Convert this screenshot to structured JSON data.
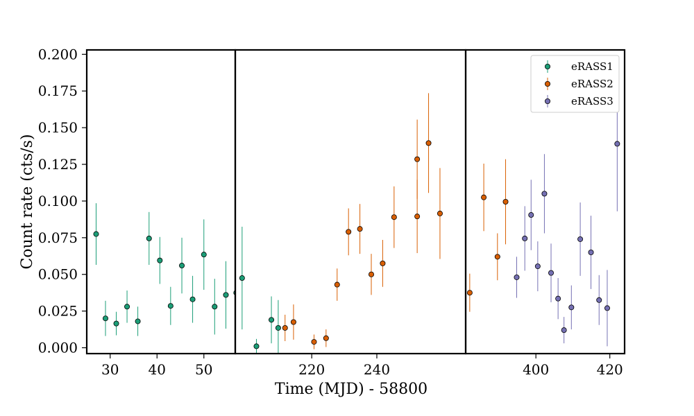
{
  "chart_data": {
    "type": "scatter",
    "xlabel": "Time (MJD) - 58800",
    "ylabel": "Count rate (cts/s)",
    "ylim": [
      -0.004,
      0.203
    ],
    "legend": {
      "placement": "top-right",
      "entries": [
        "eRASS1",
        "eRASS2",
        "eRASS3"
      ]
    },
    "colors": {
      "eRASS1": "#1b9e77",
      "eRASS2": "#d95f02",
      "eRASS3": "#7570b3"
    },
    "panels": [
      {
        "xlim": [
          25,
          56.7
        ],
        "xticks": [
          30,
          40,
          50
        ],
        "xtick_labels": [
          "30",
          "40",
          "50"
        ],
        "points": [
          {
            "series": "eRASS1",
            "x": 27.0,
            "y": 0.0775,
            "err": 0.021
          },
          {
            "series": "eRASS1",
            "x": 29.0,
            "y": 0.02,
            "err": 0.012
          },
          {
            "series": "eRASS1",
            "x": 31.3,
            "y": 0.0165,
            "err": 0.008
          },
          {
            "series": "eRASS1",
            "x": 33.6,
            "y": 0.028,
            "err": 0.011
          },
          {
            "series": "eRASS1",
            "x": 35.9,
            "y": 0.018,
            "err": 0.01
          },
          {
            "series": "eRASS1",
            "x": 38.3,
            "y": 0.0745,
            "err": 0.018
          },
          {
            "series": "eRASS1",
            "x": 40.6,
            "y": 0.0595,
            "err": 0.016
          },
          {
            "series": "eRASS1",
            "x": 42.9,
            "y": 0.0285,
            "err": 0.013
          },
          {
            "series": "eRASS1",
            "x": 45.3,
            "y": 0.056,
            "err": 0.019
          },
          {
            "series": "eRASS1",
            "x": 47.6,
            "y": 0.033,
            "err": 0.016
          },
          {
            "series": "eRASS1",
            "x": 50.0,
            "y": 0.0635,
            "err": 0.024
          },
          {
            "series": "eRASS1",
            "x": 52.3,
            "y": 0.028,
            "err": 0.019
          },
          {
            "series": "eRASS1",
            "x": 54.7,
            "y": 0.036,
            "err": 0.023
          },
          {
            "series": "eRASS1",
            "x": 56.9,
            "y": 0.0375,
            "err": 0.026
          }
        ]
      },
      {
        "xlim": [
          196.5,
          267.3
        ],
        "xticks": [
          220,
          240
        ],
        "xtick_labels": [
          "220",
          "240"
        ],
        "points": [
          {
            "series": "eRASS1",
            "x": 198.6,
            "y": 0.0475,
            "err": 0.035
          },
          {
            "series": "eRASS1",
            "x": 203.0,
            "y": 0.001,
            "err": 0.005
          },
          {
            "series": "eRASS1",
            "x": 207.6,
            "y": 0.019,
            "err": 0.016
          },
          {
            "series": "eRASS1",
            "x": 209.7,
            "y": 0.0135,
            "err": 0.019
          },
          {
            "series": "eRASS2",
            "x": 211.8,
            "y": 0.0135,
            "err": 0.009
          },
          {
            "series": "eRASS2",
            "x": 214.4,
            "y": 0.0175,
            "err": 0.012
          },
          {
            "series": "eRASS2",
            "x": 220.7,
            "y": 0.004,
            "err": 0.005
          },
          {
            "series": "eRASS2",
            "x": 224.4,
            "y": 0.0065,
            "err": 0.006
          },
          {
            "series": "eRASS2",
            "x": 227.8,
            "y": 0.043,
            "err": 0.011
          },
          {
            "series": "eRASS2",
            "x": 231.3,
            "y": 0.079,
            "err": 0.016
          },
          {
            "series": "eRASS2",
            "x": 234.8,
            "y": 0.081,
            "err": 0.017
          },
          {
            "series": "eRASS2",
            "x": 238.3,
            "y": 0.05,
            "err": 0.014
          },
          {
            "series": "eRASS2",
            "x": 241.8,
            "y": 0.0575,
            "err": 0.016
          },
          {
            "series": "eRASS2",
            "x": 245.3,
            "y": 0.089,
            "err": 0.021
          },
          {
            "series": "eRASS2",
            "x": 252.4,
            "y": 0.0895,
            "err": 0.025
          },
          {
            "series": "eRASS2",
            "x": 252.4,
            "y": 0.1285,
            "err": 0.027
          },
          {
            "series": "eRASS2",
            "x": 255.9,
            "y": 0.1395,
            "err": 0.034
          },
          {
            "series": "eRASS2",
            "x": 259.4,
            "y": 0.0915,
            "err": 0.031
          }
        ]
      },
      {
        "xlim": [
          381,
          424
        ],
        "xticks": [
          400,
          420
        ],
        "xtick_labels": [
          "400",
          "420"
        ],
        "points": [
          {
            "series": "eRASS2",
            "x": 382.1,
            "y": 0.0375,
            "err": 0.013
          },
          {
            "series": "eRASS2",
            "x": 385.9,
            "y": 0.1025,
            "err": 0.023
          },
          {
            "series": "eRASS2",
            "x": 389.6,
            "y": 0.062,
            "err": 0.016
          },
          {
            "series": "eRASS2",
            "x": 391.8,
            "y": 0.0995,
            "err": 0.029
          },
          {
            "series": "eRASS3",
            "x": 394.8,
            "y": 0.048,
            "err": 0.014
          },
          {
            "series": "eRASS3",
            "x": 397.0,
            "y": 0.0745,
            "err": 0.022
          },
          {
            "series": "eRASS3",
            "x": 398.7,
            "y": 0.0905,
            "err": 0.024
          },
          {
            "series": "eRASS3",
            "x": 400.5,
            "y": 0.0555,
            "err": 0.017
          },
          {
            "series": "eRASS3",
            "x": 402.3,
            "y": 0.105,
            "err": 0.027
          },
          {
            "series": "eRASS3",
            "x": 404.1,
            "y": 0.051,
            "err": 0.02
          },
          {
            "series": "eRASS3",
            "x": 406.0,
            "y": 0.0335,
            "err": 0.014
          },
          {
            "series": "eRASS3",
            "x": 407.6,
            "y": 0.012,
            "err": 0.009
          },
          {
            "series": "eRASS3",
            "x": 409.6,
            "y": 0.0275,
            "err": 0.015
          },
          {
            "series": "eRASS3",
            "x": 412.0,
            "y": 0.074,
            "err": 0.025
          },
          {
            "series": "eRASS3",
            "x": 414.9,
            "y": 0.065,
            "err": 0.025
          },
          {
            "series": "eRASS3",
            "x": 417.1,
            "y": 0.0325,
            "err": 0.017
          },
          {
            "series": "eRASS3",
            "x": 419.3,
            "y": 0.027,
            "err": 0.026
          },
          {
            "series": "eRASS3",
            "x": 422.0,
            "y": 0.139,
            "err": 0.046
          }
        ]
      }
    ],
    "yticks": [
      0.0,
      0.025,
      0.05,
      0.075,
      0.1,
      0.125,
      0.15,
      0.175,
      0.2
    ],
    "ytick_labels": [
      "0.000",
      "0.025",
      "0.050",
      "0.075",
      "0.100",
      "0.125",
      "0.150",
      "0.175",
      "0.200"
    ],
    "grid": false
  }
}
